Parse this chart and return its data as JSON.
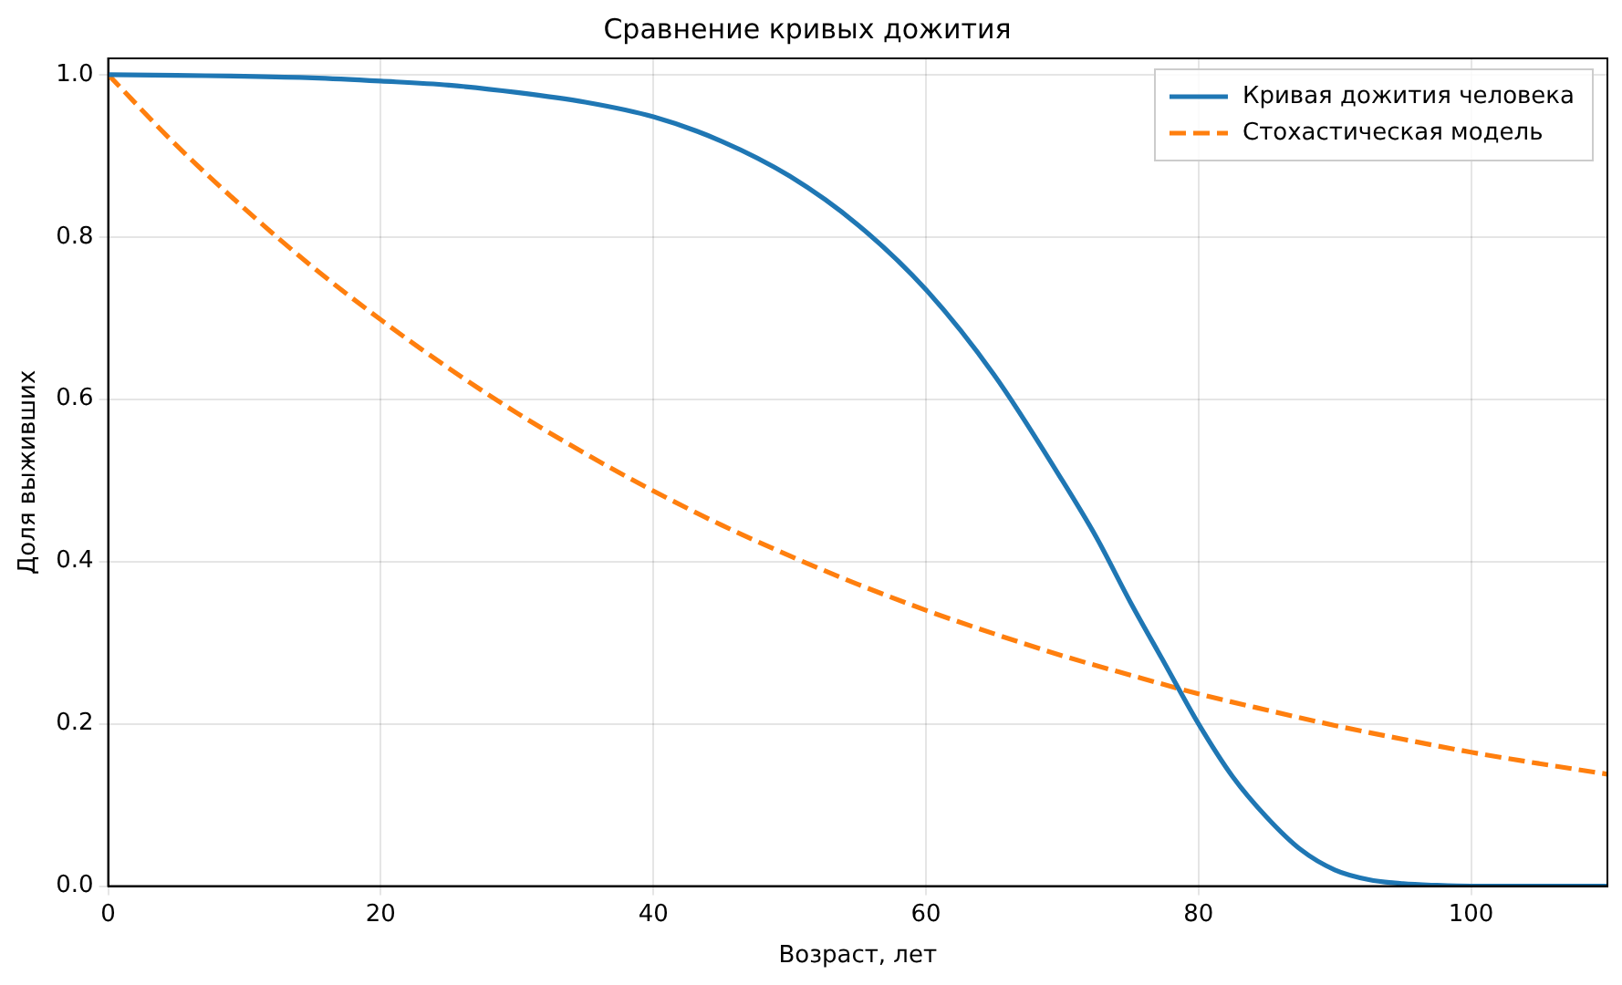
{
  "chart_data": {
    "type": "line",
    "title": "Сравнение кривых дожития",
    "xlabel": "Возраст, лет",
    "ylabel": "Доля выживших",
    "xlim": [
      0,
      110
    ],
    "xticks": [
      0,
      20,
      40,
      60,
      80,
      100
    ],
    "ylim": [
      0,
      1.02
    ],
    "yticks": [
      {
        "value": 0,
        "label": "0.0"
      },
      0.2,
      0.4,
      0.6,
      0.8,
      {
        "value": 1,
        "label": "1.0"
      }
    ],
    "grid": true,
    "legend": "top right",
    "marker": "none",
    "series": [
      {
        "name": "Кривая дожития человека",
        "color": "#1f77b4",
        "line_style": "solid",
        "x": [
          0,
          5,
          10,
          15,
          20,
          25,
          30,
          35,
          40,
          45,
          50,
          55,
          60,
          65,
          70,
          72.5,
          75,
          77.5,
          80,
          82.5,
          85,
          87.5,
          90,
          92.5,
          95,
          97.5,
          100,
          105,
          110
        ],
        "values": [
          1.0,
          0.999,
          0.998,
          0.996,
          0.992,
          0.987,
          0.978,
          0.966,
          0.948,
          0.918,
          0.875,
          0.815,
          0.735,
          0.63,
          0.5,
          0.43,
          0.35,
          0.275,
          0.2,
          0.135,
          0.085,
          0.045,
          0.02,
          0.008,
          0.003,
          0.001,
          0.0,
          0.0,
          0.0
        ]
      },
      {
        "name": "Стохастическая модель",
        "color": "#ff7f0e",
        "line_style": "dashed",
        "x": [
          0,
          5,
          10,
          15,
          20,
          25,
          30,
          35,
          40,
          45,
          50,
          55,
          60,
          65,
          70,
          75,
          80,
          85,
          90,
          95,
          100,
          105,
          110
        ],
        "values": [
          1.0,
          0.913,
          0.835,
          0.763,
          0.698,
          0.638,
          0.583,
          0.533,
          0.487,
          0.445,
          0.407,
          0.372,
          0.34,
          0.311,
          0.284,
          0.26,
          0.237,
          0.217,
          0.198,
          0.181,
          0.165,
          0.151,
          0.138
        ]
      }
    ]
  }
}
